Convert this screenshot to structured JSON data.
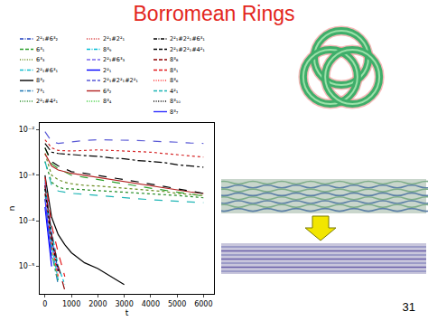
{
  "slide": {
    "title": "Borromean Rings",
    "page_number": "31"
  },
  "chart_data": {
    "type": "line",
    "x_label": "t",
    "y_label": "n",
    "x": [
      0,
      250,
      500,
      750,
      1000,
      1500,
      2000,
      2500,
      3000,
      3500,
      4000,
      4500,
      5000,
      5500,
      6000
    ],
    "xlim": [
      -200,
      6400
    ],
    "xticks": [
      0,
      1000,
      2000,
      3000,
      4000,
      5000,
      6000
    ],
    "ylim": [
      2.5e-06,
      0.014
    ],
    "yticks": [
      {
        "value": 1e-05,
        "label": "10⁻⁵"
      },
      {
        "value": 0.0001,
        "label": "10⁻⁴"
      },
      {
        "value": 0.001,
        "label": "10⁻³"
      },
      {
        "value": 0.01,
        "label": "10⁻²"
      }
    ],
    "log": "y",
    "grid": false,
    "legend": "top",
    "series": [
      {
        "name": "2²₁#6³₂",
        "color": "#1f3fbf",
        "line_style": "dashdot",
        "values": [
          0.0006,
          4e-05,
          8e-06,
          null,
          null,
          null,
          null,
          null,
          null,
          null,
          null,
          null,
          null,
          null,
          null
        ]
      },
      {
        "name": "6³₁",
        "color": "#2ca02c",
        "line_style": "dash",
        "values": [
          0.004,
          0.0018,
          0.0014,
          0.0012,
          0.001,
          0.0009,
          0.0008,
          0.00072,
          0.00065,
          0.00058,
          0.00052,
          0.00047,
          0.00042,
          0.00038,
          0.00035
        ]
      },
      {
        "name": "6³₃",
        "color": "#6b8e23",
        "line_style": "dot",
        "values": [
          0.003,
          0.001,
          0.0008,
          0.0007,
          0.00065,
          0.0006,
          0.00058,
          0.00055,
          0.00052,
          0.0005,
          0.00047,
          0.00044,
          0.0004,
          0.00038,
          0.00036
        ]
      },
      {
        "name": "2²₁#6³₁",
        "color": "#17becf",
        "line_style": "dashdot",
        "values": [
          0.0008,
          3e-05,
          5e-06,
          null,
          null,
          null,
          null,
          null,
          null,
          null,
          null,
          null,
          null,
          null,
          null
        ]
      },
      {
        "name": "8³₂",
        "color": "#000000",
        "line_style": "solid",
        "values": [
          0.001,
          0.00012,
          5e-05,
          3e-05,
          2e-05,
          1.2e-05,
          9e-06,
          6e-06,
          4e-06,
          null,
          null,
          null,
          null,
          null,
          null
        ]
      },
      {
        "name": "7³₁",
        "color": "#1f77b4",
        "line_style": "dashdot",
        "values": [
          0.0004,
          2e-05,
          4e-06,
          null,
          null,
          null,
          null,
          null,
          null,
          null,
          null,
          null,
          null,
          null,
          null
        ]
      },
      {
        "name": "2²₁#4²₁",
        "color": "#228b22",
        "line_style": "dot",
        "values": [
          0.002,
          0.0007,
          0.00055,
          0.0005,
          0.0005,
          0.00048,
          0.00046,
          0.00045,
          0.00043,
          0.00042,
          0.0004,
          0.00038,
          0.00036,
          0.00034,
          0.00032
        ]
      },
      {
        "name": "2²₁#2²₁",
        "color": "#d62728",
        "line_style": "dot",
        "values": [
          0.006,
          0.004,
          0.0035,
          0.0034,
          0.0034,
          0.0035,
          0.0036,
          0.0035,
          0.0034,
          0.0033,
          0.0032,
          0.003,
          0.0028,
          0.0026,
          0.0025
        ]
      },
      {
        "name": "8³₉",
        "color": "#00bcd4",
        "line_style": "dashdot",
        "values": [
          0.0005,
          6e-05,
          1e-05,
          4e-06,
          null,
          null,
          null,
          null,
          null,
          null,
          null,
          null,
          null,
          null,
          null
        ]
      },
      {
        "name": "2²₁#6³₃",
        "color": "#7b68ee",
        "line_style": "dash",
        "values": [
          0.0007,
          5e-05,
          7e-06,
          null,
          null,
          null,
          null,
          null,
          null,
          null,
          null,
          null,
          null,
          null,
          null
        ]
      },
      {
        "name": "2²₁",
        "color": "#0000ff",
        "line_style": "solid",
        "values": [
          0.0002,
          1e-05,
          null,
          null,
          null,
          null,
          null,
          null,
          null,
          null,
          null,
          null,
          null,
          null,
          null
        ]
      },
      {
        "name": "2²₁#2²₁#2²₁",
        "color": "#5a5ad6",
        "line_style": "dash",
        "values": [
          0.009,
          0.0055,
          0.005,
          0.0052,
          0.0055,
          0.0058,
          0.006,
          0.006,
          0.0059,
          0.0058,
          0.0056,
          0.0055,
          0.0053,
          0.0051,
          0.005
        ]
      },
      {
        "name": "6³₂",
        "color": "#b22222",
        "line_style": "solid",
        "values": [
          0.003,
          0.0016,
          0.0013,
          0.0012,
          0.0011,
          0.001,
          0.0009,
          0.0008,
          0.00072,
          0.00065,
          0.00058,
          0.00052,
          0.00047,
          0.00043,
          0.0004
        ]
      },
      {
        "name": "8³₄",
        "color": "#32cd32",
        "line_style": "dot",
        "values": [
          0.0003,
          2e-05,
          5e-06,
          null,
          null,
          null,
          null,
          null,
          null,
          null,
          null,
          null,
          null,
          null,
          null
        ]
      },
      {
        "name": "2²₁#2²₁#6³₁",
        "color": "#000000",
        "line_style": "dashdot",
        "values": [
          0.005,
          0.0032,
          0.003,
          0.0029,
          0.0028,
          0.0027,
          0.0026,
          0.0024,
          0.0023,
          0.0021,
          0.002,
          0.0019,
          0.0017,
          0.0016,
          0.0015
        ]
      },
      {
        "name": "2²₁#2²₁#4²₁",
        "color": "#000000",
        "line_style": "dash",
        "values": [
          0.004,
          0.002,
          0.0016,
          0.0014,
          0.0012,
          0.0011,
          0.001,
          0.0009,
          0.0008,
          0.00072,
          0.00064,
          0.00057,
          0.0005,
          0.00045,
          0.0004
        ]
      },
      {
        "name": "8³₈",
        "color": "#8b0000",
        "line_style": "dash",
        "values": [
          0.0006,
          5e-05,
          1e-05,
          3e-06,
          null,
          null,
          null,
          null,
          null,
          null,
          null,
          null,
          null,
          null,
          null
        ]
      },
      {
        "name": "8³₁",
        "color": "#e31a1c",
        "line_style": "dash",
        "values": [
          0.0009,
          8e-05,
          2e-05,
          6e-06,
          null,
          null,
          null,
          null,
          null,
          null,
          null,
          null,
          null,
          null,
          null
        ]
      },
      {
        "name": "8³₆",
        "color": "#ff3030",
        "line_style": "dot",
        "values": [
          0.0004,
          3e-05,
          6e-06,
          null,
          null,
          null,
          null,
          null,
          null,
          null,
          null,
          null,
          null,
          null,
          null
        ]
      },
      {
        "name": "4²₁",
        "color": "#1fb5b5",
        "line_style": "dash",
        "values": [
          0.002,
          0.0006,
          0.00045,
          0.00042,
          0.0004,
          0.00038,
          0.00036,
          0.00034,
          0.00032,
          0.0003,
          0.00029,
          0.00028,
          0.00027,
          0.00026,
          0.00025
        ]
      },
      {
        "name": "8³₁₀",
        "color": "#000000",
        "line_style": "dot",
        "values": [
          0.0005,
          4e-05,
          8e-06,
          null,
          null,
          null,
          null,
          null,
          null,
          null,
          null,
          null,
          null,
          null,
          null
        ]
      },
      {
        "name": "8³₇",
        "color": "#3030ff",
        "line_style": "solid",
        "values": [
          0.0003,
          1.5e-05,
          null,
          null,
          null,
          null,
          null,
          null,
          null,
          null,
          null,
          null,
          null,
          null,
          null
        ]
      }
    ]
  }
}
